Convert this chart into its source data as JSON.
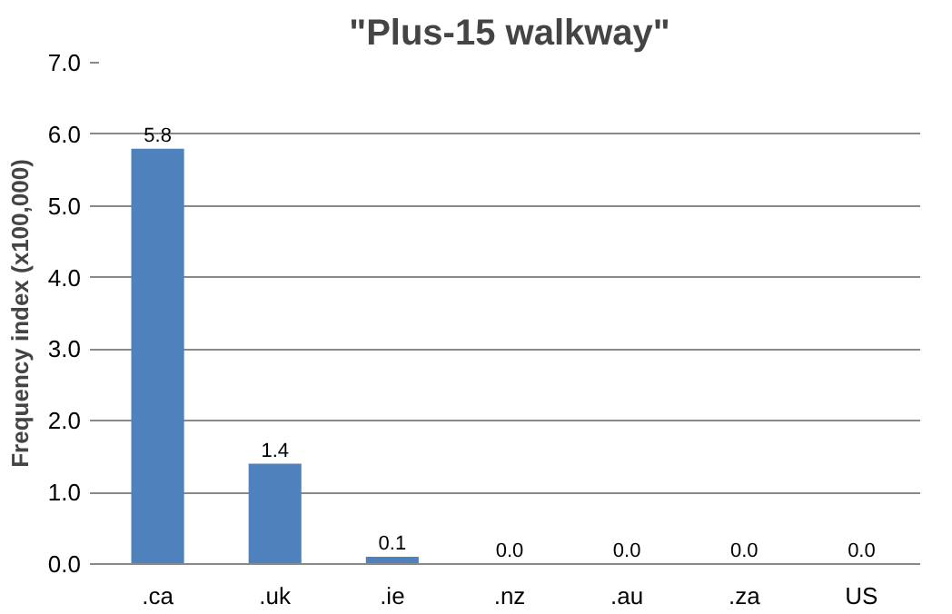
{
  "chart_data": {
    "type": "bar",
    "title": "\"Plus-15 walkway\"",
    "ylabel": "Frequency index (x100,000)",
    "categories": [
      ".ca",
      ".uk",
      ".ie",
      ".nz",
      ".au",
      ".za",
      "US"
    ],
    "values": [
      5.8,
      1.4,
      0.1,
      0.0,
      0.0,
      0.0,
      0.0
    ],
    "color": "#4f81bd",
    "ylim": [
      0,
      7
    ],
    "yticks": [
      {
        "value": 0,
        "label": "0.0"
      },
      {
        "value": 1,
        "label": "1.0"
      },
      {
        "value": 2,
        "label": "2.0"
      },
      {
        "value": 3,
        "label": "3.0"
      },
      {
        "value": 4,
        "label": "4.0"
      },
      {
        "value": 5,
        "label": "5.0"
      },
      {
        "value": 6,
        "label": "6.0"
      },
      {
        "value": 7,
        "label": "7.0"
      }
    ],
    "grid": "y",
    "value_labels": [
      "5.8",
      "1.4",
      "0.1",
      "0.0",
      "0.0",
      "0.0",
      "0.0"
    ]
  }
}
